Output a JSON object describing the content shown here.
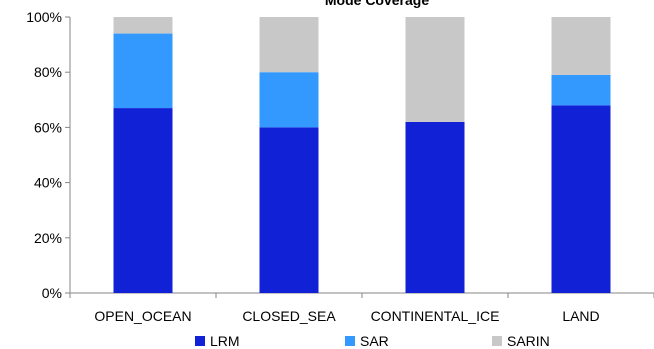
{
  "chart_data": {
    "type": "bar",
    "stacked": true,
    "percent": true,
    "title": "Mode Coverage",
    "xlabel": "",
    "ylabel": "",
    "categories": [
      "OPEN_OCEAN",
      "CLOSED_SEA",
      "CONTINENTAL_ICE",
      "LAND"
    ],
    "series": [
      {
        "name": "LRM",
        "color": "#1121D6",
        "values": [
          67,
          60,
          62,
          68
        ]
      },
      {
        "name": "SAR",
        "color": "#3399FF",
        "values": [
          27,
          20,
          0,
          11
        ]
      },
      {
        "name": "SARIN",
        "color": "#C8C8C8",
        "values": [
          6,
          20,
          38,
          21
        ]
      }
    ],
    "ylim": [
      0,
      100
    ],
    "yticks": [
      "0%",
      "20%",
      "40%",
      "60%",
      "80%",
      "100%"
    ],
    "grid": false,
    "legend": "bottom"
  }
}
